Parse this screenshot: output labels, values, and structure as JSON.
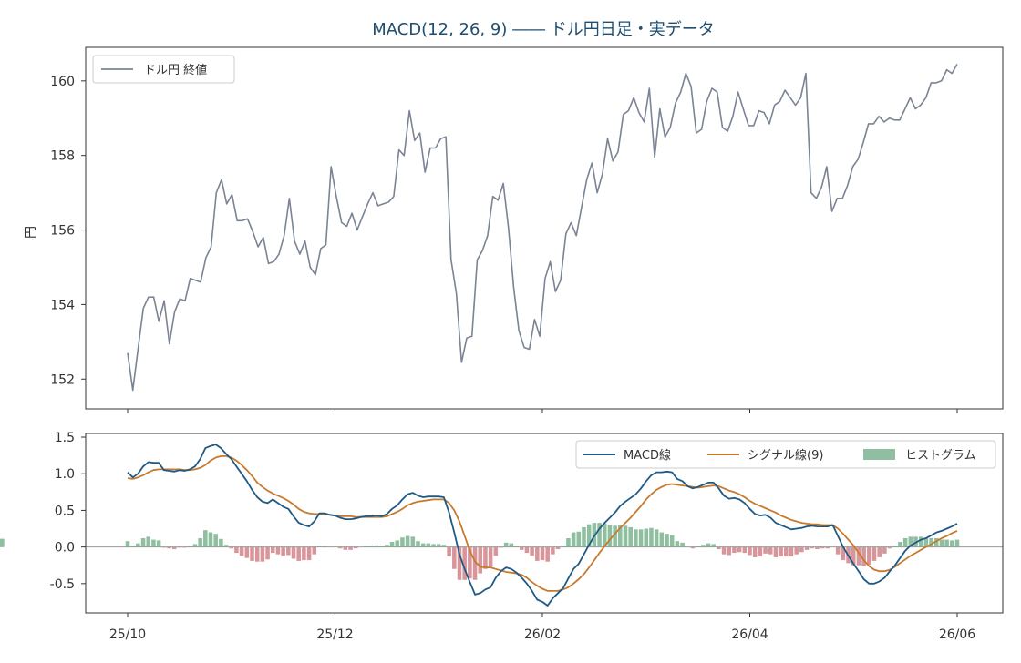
{
  "chart_data": {
    "type": "line",
    "title": "MACD(12, 26, 9) ―― ドル円日足・実データ",
    "x_ticks": [
      "25/10",
      "25/12",
      "26/02",
      "26/04",
      "26/06"
    ],
    "price_panel": {
      "ylabel": "円",
      "ylim": [
        151.2,
        160.9
      ],
      "yticks": [
        152,
        154,
        156,
        158,
        160
      ],
      "series": [
        {
          "name": "ドル円 終値",
          "color": "#7a8494",
          "values": [
            152.7,
            151.7,
            152.8,
            153.9,
            154.2,
            154.2,
            153.55,
            154.1,
            152.95,
            153.8,
            154.15,
            154.1,
            154.7,
            154.65,
            154.6,
            155.25,
            155.55,
            157.0,
            157.35,
            156.7,
            156.95,
            156.25,
            156.25,
            156.3,
            155.95,
            155.55,
            155.8,
            155.1,
            155.15,
            155.35,
            155.85,
            156.85,
            155.7,
            155.35,
            155.7,
            155.0,
            154.8,
            155.5,
            155.6,
            157.7,
            156.9,
            156.2,
            156.1,
            156.45,
            156.0,
            156.35,
            156.7,
            157.0,
            156.65,
            156.7,
            156.75,
            156.9,
            158.15,
            158.0,
            159.2,
            158.4,
            158.6,
            157.55,
            158.2,
            158.2,
            158.45,
            158.5,
            155.2,
            154.3,
            152.45,
            153.1,
            153.15,
            155.2,
            155.45,
            155.85,
            156.9,
            156.8,
            157.25,
            156.05,
            154.45,
            153.3,
            152.85,
            152.8,
            153.6,
            153.15,
            154.7,
            155.15,
            154.35,
            154.65,
            155.9,
            156.2,
            155.85,
            156.6,
            157.35,
            157.8,
            157.0,
            157.5,
            158.45,
            157.85,
            158.1,
            159.1,
            159.2,
            159.55,
            159.15,
            158.9,
            159.8,
            157.95,
            159.25,
            158.5,
            158.75,
            159.4,
            159.7,
            160.2,
            159.85,
            158.6,
            158.7,
            159.45,
            159.8,
            159.7,
            158.75,
            158.65,
            159.05,
            159.7,
            159.25,
            158.8,
            158.8,
            159.2,
            159.15,
            158.85,
            159.35,
            159.45,
            159.75,
            159.55,
            159.35,
            159.55,
            160.2,
            157.0,
            156.85,
            157.15,
            157.7,
            156.5,
            156.85,
            156.85,
            157.2,
            157.7,
            157.9,
            158.35,
            158.85,
            158.85,
            159.05,
            158.9,
            159.0,
            158.95,
            158.95,
            159.25,
            159.55,
            159.25,
            159.35,
            159.55,
            159.95,
            159.95,
            160.0,
            160.3,
            160.2,
            160.45
          ]
        }
      ]
    },
    "macd_panel": {
      "ylim": [
        -0.9,
        1.55
      ],
      "yticks": [
        "1.5",
        "1.0",
        "0.5",
        "0.0",
        "-0.5"
      ],
      "ytick_values": [
        1.5,
        1.0,
        0.5,
        0.0,
        -0.5
      ],
      "zero_line": true,
      "legend": [
        "MACD線",
        "シグナル線(9)",
        "ヒストグラム"
      ],
      "colors": {
        "macd": "#1f5a85",
        "signal": "#c87a2c",
        "hist_pos": "#8fbfa0",
        "hist_neg": "#d9969a"
      },
      "x_days": [
        0,
        11,
        22,
        33,
        44,
        55,
        66,
        77,
        88,
        99,
        110,
        121,
        132,
        143,
        154,
        165,
        176,
        187,
        198,
        209,
        220,
        231,
        242,
        253,
        264,
        275,
        286,
        297,
        308,
        319,
        330,
        341,
        352,
        363,
        374,
        385,
        396,
        407,
        418,
        429,
        440,
        451,
        462,
        473,
        484,
        495,
        506,
        517,
        528,
        539,
        550,
        561,
        572,
        583,
        594,
        605,
        616,
        627,
        638,
        649,
        660,
        671,
        682,
        693,
        704,
        715,
        726,
        737,
        748,
        759,
        770,
        781,
        792,
        803,
        814,
        825,
        836,
        847,
        858,
        869,
        880,
        891,
        902,
        913,
        924,
        935,
        946,
        957,
        968,
        979,
        990,
        1001,
        1012,
        1023,
        1034,
        1045,
        1056,
        1067,
        1078,
        1089,
        1100,
        1111,
        1122,
        1133,
        1144,
        1155,
        1166,
        1177,
        1188,
        1199,
        1210,
        1221,
        1232,
        1243,
        1254,
        1265,
        1276,
        1287,
        1298,
        1309,
        1320,
        1331,
        1342,
        1353,
        1364,
        1375,
        1386,
        1397,
        1408,
        1419,
        1430,
        1441,
        1452,
        1463,
        1474,
        1485,
        1496,
        1507,
        1518,
        1529,
        1540,
        1551,
        1562,
        1573,
        1584,
        1595,
        1606,
        1617,
        1628,
        1639,
        1650,
        1661,
        1672,
        1683,
        1694,
        1705,
        1716,
        1727,
        1738,
        1749,
        1760
      ],
      "macd": [
        1.02,
        0.95,
        1.0,
        1.1,
        1.16,
        1.15,
        1.15,
        1.05,
        1.04,
        1.03,
        1.05,
        1.04,
        1.06,
        1.1,
        1.2,
        1.35,
        1.38,
        1.4,
        1.35,
        1.27,
        1.2,
        1.1,
        1.0,
        0.9,
        0.78,
        0.68,
        0.62,
        0.6,
        0.65,
        0.6,
        0.55,
        0.52,
        0.42,
        0.33,
        0.3,
        0.28,
        0.35,
        0.46,
        0.46,
        0.44,
        0.43,
        0.4,
        0.38,
        0.38,
        0.39,
        0.41,
        0.42,
        0.42,
        0.43,
        0.42,
        0.45,
        0.52,
        0.57,
        0.65,
        0.72,
        0.74,
        0.7,
        0.68,
        0.69,
        0.69,
        0.69,
        0.68,
        0.47,
        0.2,
        -0.1,
        -0.3,
        -0.48,
        -0.65,
        -0.63,
        -0.58,
        -0.55,
        -0.42,
        -0.33,
        -0.28,
        -0.3,
        -0.35,
        -0.42,
        -0.5,
        -0.6,
        -0.72,
        -0.75,
        -0.8,
        -0.7,
        -0.63,
        -0.56,
        -0.43,
        -0.3,
        -0.23,
        -0.1,
        0.03,
        0.15,
        0.25,
        0.33,
        0.4,
        0.47,
        0.56,
        0.62,
        0.67,
        0.72,
        0.8,
        0.9,
        0.98,
        1.02,
        1.02,
        1.03,
        1.02,
        0.93,
        0.9,
        0.83,
        0.8,
        0.82,
        0.85,
        0.88,
        0.88,
        0.8,
        0.7,
        0.66,
        0.67,
        0.65,
        0.6,
        0.52,
        0.45,
        0.43,
        0.44,
        0.4,
        0.33,
        0.3,
        0.27,
        0.24,
        0.25,
        0.26,
        0.28,
        0.29,
        0.28,
        0.28,
        0.28,
        0.3,
        0.15,
        0.0,
        -0.12,
        -0.23,
        -0.33,
        -0.44,
        -0.5,
        -0.5,
        -0.47,
        -0.42,
        -0.33,
        -0.25,
        -0.15,
        -0.05,
        0.02,
        0.06,
        0.1,
        0.12,
        0.16,
        0.2,
        0.22,
        0.25,
        0.28,
        0.32,
        0.36,
        0.4,
        0.43,
        0.46,
        0.48
      ],
      "signal": [
        0.94,
        0.93,
        0.95,
        0.98,
        1.02,
        1.05,
        1.06,
        1.06,
        1.06,
        1.06,
        1.06,
        1.05,
        1.05,
        1.06,
        1.08,
        1.12,
        1.18,
        1.22,
        1.24,
        1.24,
        1.22,
        1.18,
        1.12,
        1.05,
        0.97,
        0.88,
        0.82,
        0.77,
        0.73,
        0.7,
        0.67,
        0.63,
        0.58,
        0.52,
        0.48,
        0.46,
        0.45,
        0.45,
        0.45,
        0.44,
        0.43,
        0.42,
        0.42,
        0.42,
        0.41,
        0.41,
        0.41,
        0.41,
        0.41,
        0.41,
        0.42,
        0.45,
        0.48,
        0.52,
        0.57,
        0.6,
        0.62,
        0.63,
        0.64,
        0.65,
        0.65,
        0.65,
        0.6,
        0.5,
        0.35,
        0.15,
        -0.05,
        -0.2,
        -0.27,
        -0.28,
        -0.28,
        -0.3,
        -0.32,
        -0.34,
        -0.35,
        -0.36,
        -0.38,
        -0.42,
        -0.48,
        -0.53,
        -0.57,
        -0.6,
        -0.6,
        -0.6,
        -0.58,
        -0.55,
        -0.5,
        -0.44,
        -0.37,
        -0.28,
        -0.18,
        -0.08,
        0.01,
        0.1,
        0.18,
        0.26,
        0.33,
        0.4,
        0.48,
        0.56,
        0.65,
        0.72,
        0.78,
        0.82,
        0.85,
        0.86,
        0.85,
        0.84,
        0.83,
        0.82,
        0.81,
        0.82,
        0.83,
        0.84,
        0.83,
        0.8,
        0.77,
        0.75,
        0.72,
        0.68,
        0.63,
        0.59,
        0.56,
        0.53,
        0.5,
        0.47,
        0.43,
        0.4,
        0.37,
        0.35,
        0.33,
        0.32,
        0.31,
        0.31,
        0.3,
        0.3,
        0.3,
        0.25,
        0.18,
        0.1,
        0.02,
        -0.08,
        -0.18,
        -0.26,
        -0.31,
        -0.33,
        -0.33,
        -0.31,
        -0.27,
        -0.22,
        -0.17,
        -0.12,
        -0.08,
        -0.04,
        0.0,
        0.04,
        0.08,
        0.12,
        0.15,
        0.19,
        0.22,
        0.26,
        0.29,
        0.32,
        0.35,
        0.37
      ],
      "histogram": [
        0.08,
        0.02,
        0.05,
        0.12,
        0.14,
        0.1,
        0.09,
        -0.01,
        -0.02,
        -0.03,
        -0.01,
        -0.01,
        0.01,
        0.04,
        0.12,
        0.23,
        0.2,
        0.18,
        0.11,
        0.03,
        -0.02,
        -0.08,
        -0.12,
        -0.15,
        -0.19,
        -0.2,
        -0.2,
        -0.17,
        -0.08,
        -0.1,
        -0.12,
        -0.11,
        -0.16,
        -0.19,
        -0.18,
        -0.18,
        -0.1,
        0.01,
        0.01,
        0.0,
        0.0,
        -0.02,
        -0.04,
        -0.04,
        -0.02,
        0.0,
        0.01,
        0.01,
        0.02,
        0.01,
        0.03,
        0.07,
        0.09,
        0.13,
        0.15,
        0.14,
        0.08,
        0.05,
        0.05,
        0.04,
        0.04,
        0.03,
        -0.13,
        -0.3,
        -0.45,
        -0.45,
        -0.43,
        -0.45,
        -0.36,
        -0.3,
        -0.27,
        -0.12,
        -0.01,
        0.06,
        0.05,
        0.01,
        -0.04,
        -0.08,
        -0.12,
        -0.19,
        -0.18,
        -0.2,
        -0.1,
        -0.03,
        0.02,
        0.12,
        0.2,
        0.21,
        0.27,
        0.31,
        0.33,
        0.33,
        0.32,
        0.3,
        0.29,
        0.3,
        0.29,
        0.27,
        0.24,
        0.24,
        0.25,
        0.26,
        0.24,
        0.2,
        0.18,
        0.16,
        0.08,
        0.06,
        0.0,
        -0.02,
        0.01,
        0.03,
        0.05,
        0.04,
        -0.03,
        -0.1,
        -0.11,
        -0.08,
        -0.07,
        -0.08,
        -0.11,
        -0.14,
        -0.13,
        -0.09,
        -0.1,
        -0.14,
        -0.13,
        -0.13,
        -0.13,
        -0.1,
        -0.07,
        -0.04,
        -0.02,
        -0.03,
        -0.02,
        -0.02,
        0.0,
        -0.1,
        -0.18,
        -0.22,
        -0.25,
        -0.25,
        -0.26,
        -0.24,
        -0.19,
        -0.14,
        -0.09,
        -0.02,
        0.02,
        0.07,
        0.12,
        0.14,
        0.14,
        0.14,
        0.12,
        0.12,
        0.12,
        0.1,
        0.1,
        0.09,
        0.1,
        0.1,
        0.11,
        0.11,
        0.11
      ]
    }
  }
}
